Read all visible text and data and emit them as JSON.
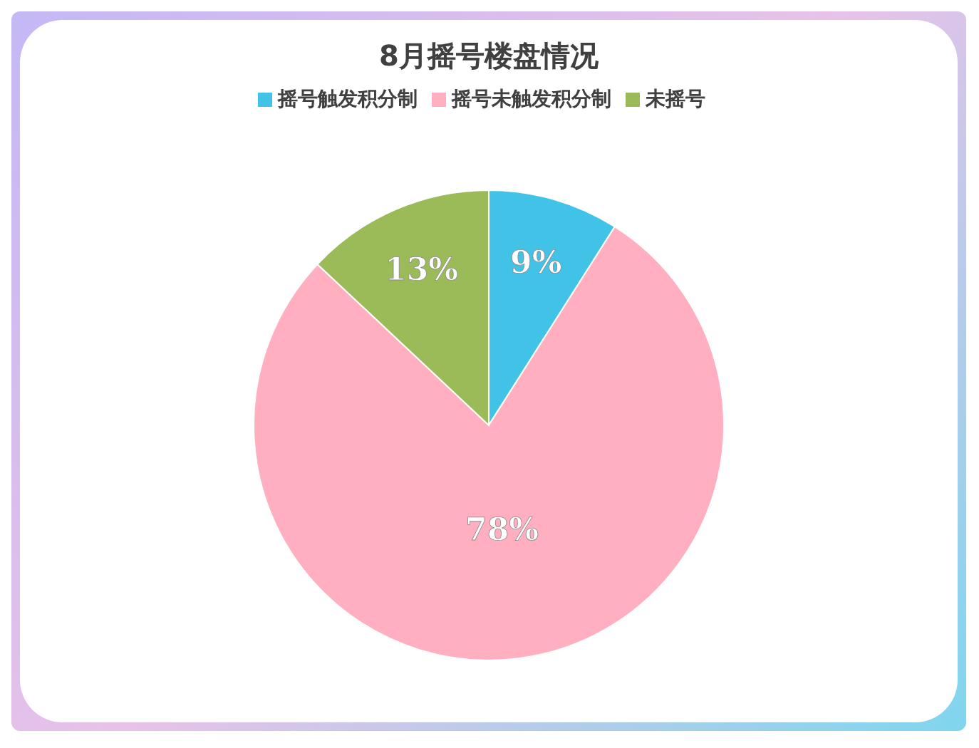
{
  "chart_data": {
    "type": "pie",
    "title": "8月摇号楼盘情况",
    "categories": [
      "摇号触发积分制",
      "摇号未触发积分制",
      "未摇号"
    ],
    "values": [
      9,
      78,
      13
    ],
    "colors": [
      "#41c3e8",
      "#ffafbf",
      "#9bbb59"
    ],
    "value_labels": [
      "9%",
      "78%",
      "13%"
    ],
    "legend": "top"
  }
}
